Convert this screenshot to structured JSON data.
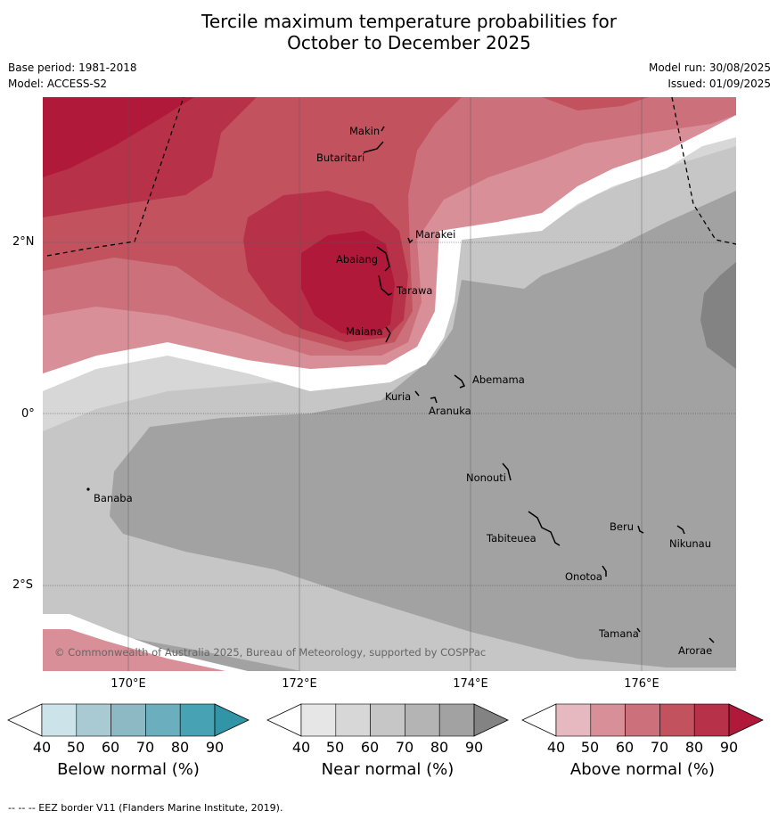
{
  "title": {
    "line1": "Tercile maximum temperature probabilities for",
    "line2": "October to December 2025"
  },
  "meta": {
    "base_period": "Base period: 1981-2018",
    "model": "Model: ACCESS-S2",
    "model_run": "Model run: 30/08/2025",
    "issued": "Issued: 01/09/2025"
  },
  "map": {
    "lat_labels": [
      "2°N",
      "0°",
      "2°S"
    ],
    "lon_labels": [
      "170°E",
      "172°E",
      "174°E",
      "176°E"
    ],
    "copyright": "© Commonwealth of Australia 2025, Bureau of Meteorology, supported by COSPPac",
    "places": [
      {
        "name": "Makin"
      },
      {
        "name": "Butaritari"
      },
      {
        "name": "Marakei"
      },
      {
        "name": "Abaiang"
      },
      {
        "name": "Tarawa"
      },
      {
        "name": "Maiana"
      },
      {
        "name": "Abemama"
      },
      {
        "name": "Kuria"
      },
      {
        "name": "Aranuka"
      },
      {
        "name": "Banaba"
      },
      {
        "name": "Nonouti"
      },
      {
        "name": "Beru"
      },
      {
        "name": "Tabiteuea"
      },
      {
        "name": "Nikunau"
      },
      {
        "name": "Onotoa"
      },
      {
        "name": "Tamana"
      },
      {
        "name": "Arorae"
      }
    ]
  },
  "colorbars": [
    {
      "title": "Below normal (%)",
      "ticks": [
        "40",
        "50",
        "60",
        "70",
        "80",
        "90"
      ],
      "colors": [
        "#ffffff",
        "#cde3ea",
        "#a9cad3",
        "#8db9c4",
        "#6baebd",
        "#47a3b3",
        "#3294a7"
      ]
    },
    {
      "title": "Near normal (%)",
      "ticks": [
        "40",
        "50",
        "60",
        "70",
        "80",
        "90"
      ],
      "colors": [
        "#ffffff",
        "#e6e6e6",
        "#d7d7d7",
        "#c6c6c6",
        "#b4b4b4",
        "#a2a2a2",
        "#838383"
      ]
    },
    {
      "title": "Above normal (%)",
      "ticks": [
        "40",
        "50",
        "60",
        "70",
        "80",
        "90"
      ],
      "colors": [
        "#ffffff",
        "#e6b8bf",
        "#d88f98",
        "#cc717b",
        "#c3525f",
        "#b73249",
        "#b0193a"
      ]
    }
  ],
  "footer": "--  --  -- EEZ border V11 (Flanders Marine Institute, 2019)."
}
